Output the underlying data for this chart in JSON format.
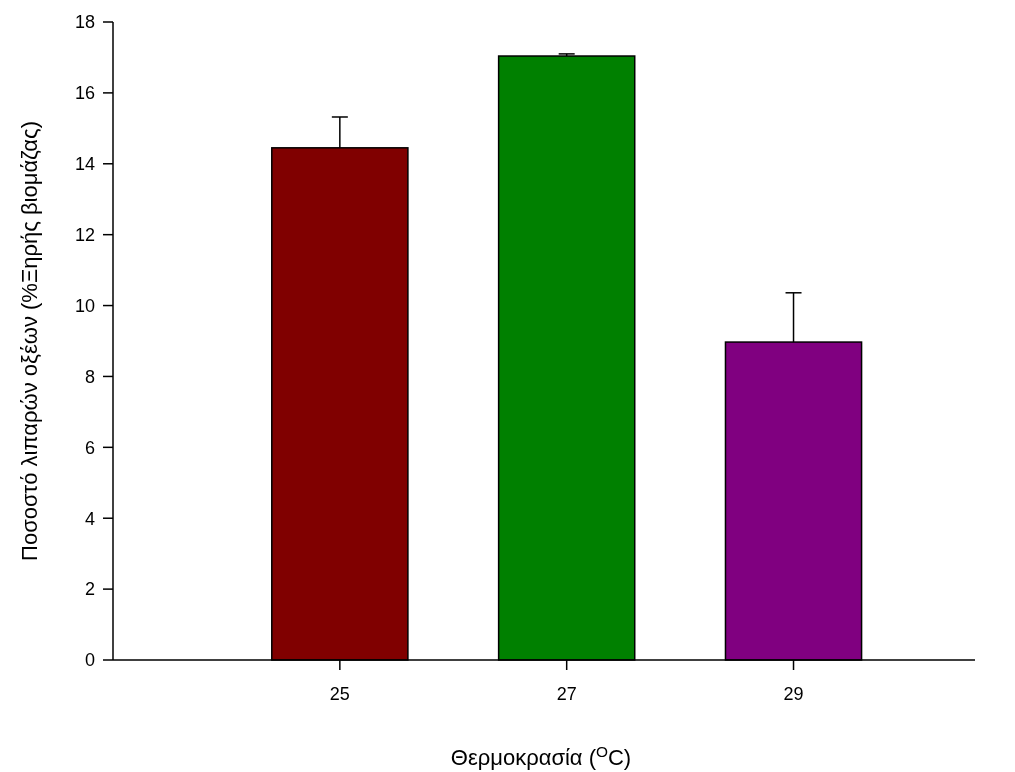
{
  "chart_data": {
    "type": "bar",
    "xlabel": "Θερμοκρασία ($^{O}$C)",
    "ylabel": "Ποσοστό λιπαρών οξέων (%Ξηρής βιομάζας)",
    "x": [
      25,
      27,
      29
    ],
    "values": [
      14.45,
      17.04,
      8.97
    ],
    "colors": [
      "#800000",
      "#008000",
      "#800080"
    ],
    "errors": [
      [
        14.45,
        15.32
      ],
      [
        17.04,
        17.1
      ],
      [
        8.97,
        10.36
      ]
    ],
    "xlim": [
      23,
      30.6
    ],
    "xticks": [
      25,
      27,
      29
    ],
    "ylim": [
      0,
      18
    ],
    "yticks": [
      0,
      2,
      4,
      6,
      8,
      10,
      12,
      14,
      16,
      18
    ],
    "grid": false
  }
}
